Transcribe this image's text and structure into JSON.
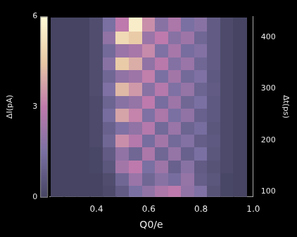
{
  "chart_data": {
    "type": "heatmap",
    "x_label": "Q0/e",
    "y_label": "Δt(ps)",
    "colorbar_label": "ΔI(pA)",
    "x": [
      0.25,
      0.3,
      0.35,
      0.4,
      0.45,
      0.5,
      0.55,
      0.6,
      0.65,
      0.7,
      0.75,
      0.8,
      0.85,
      0.9,
      0.95
    ],
    "y": [
      100,
      125,
      150,
      175,
      200,
      225,
      250,
      275,
      300,
      325,
      350,
      375,
      400,
      425
    ],
    "values": [
      [
        0,
        0,
        0,
        0,
        0.2,
        0.8,
        1.5,
        2.0,
        2.6,
        3.0,
        2.0,
        1.6,
        0.5,
        0.1,
        0
      ],
      [
        0,
        0,
        0,
        0,
        0.3,
        1.2,
        2.2,
        1.2,
        1.8,
        1.4,
        2.1,
        0.9,
        0.6,
        0.1,
        0
      ],
      [
        0,
        0,
        0,
        0.1,
        0.6,
        2.4,
        3.0,
        1.5,
        2.3,
        1.0,
        1.8,
        0.8,
        0.5,
        0.2,
        0
      ],
      [
        0,
        0,
        0,
        0.1,
        0.8,
        2.0,
        1.2,
        2.6,
        1.2,
        2.1,
        1.0,
        1.5,
        0.6,
        0.2,
        0
      ],
      [
        0,
        0,
        0,
        0.2,
        1.2,
        3.4,
        2.8,
        1.4,
        2.4,
        1.3,
        1.7,
        0.9,
        0.7,
        0.2,
        0
      ],
      [
        0,
        0,
        0,
        0.2,
        1.0,
        1.6,
        2.0,
        2.8,
        1.3,
        2.2,
        1.1,
        1.4,
        0.6,
        0.2,
        0
      ],
      [
        0,
        0,
        0,
        0.2,
        1.4,
        3.8,
        3.2,
        1.6,
        2.6,
        1.5,
        2.0,
        1.0,
        0.7,
        0.2,
        0
      ],
      [
        0,
        0,
        0,
        0.2,
        1.1,
        1.8,
        2.1,
        3.0,
        1.4,
        2.3,
        1.2,
        1.5,
        0.7,
        0.2,
        0
      ],
      [
        0,
        0,
        0,
        0.3,
        1.6,
        4.2,
        3.6,
        1.8,
        2.8,
        1.6,
        2.1,
        1.1,
        0.8,
        0.2,
        0
      ],
      [
        0,
        0,
        0,
        0.3,
        1.2,
        2.0,
        2.3,
        3.1,
        1.5,
        2.4,
        1.3,
        1.6,
        0.7,
        0.2,
        0
      ],
      [
        0,
        0,
        0,
        0.3,
        1.8,
        4.6,
        4.0,
        2.0,
        2.9,
        1.7,
        2.2,
        1.2,
        0.8,
        0.2,
        0
      ],
      [
        0,
        0,
        0,
        0.3,
        1.3,
        2.2,
        2.5,
        3.3,
        1.6,
        2.5,
        1.4,
        1.7,
        0.8,
        0.2,
        0
      ],
      [
        0,
        0,
        0,
        0.3,
        2.0,
        5.0,
        4.6,
        2.2,
        3.0,
        1.8,
        2.3,
        1.2,
        0.8,
        0.2,
        0
      ],
      [
        0,
        0,
        0,
        0.3,
        1.5,
        3.0,
        5.6,
        3.4,
        1.8,
        2.6,
        1.5,
        1.8,
        0.8,
        0.2,
        0
      ]
    ],
    "xlim": [
      0.22,
      1.0
    ],
    "xticks": [
      0.4,
      0.6,
      0.8,
      {
        "value": 1,
        "label": "1.0"
      }
    ],
    "ylim": [
      90,
      440
    ],
    "yticks": [
      100,
      200,
      300,
      400
    ],
    "colorbar_lim": [
      0,
      6
    ],
    "colorbar_ticks": [
      0,
      3,
      6
    ],
    "grid": false
  }
}
